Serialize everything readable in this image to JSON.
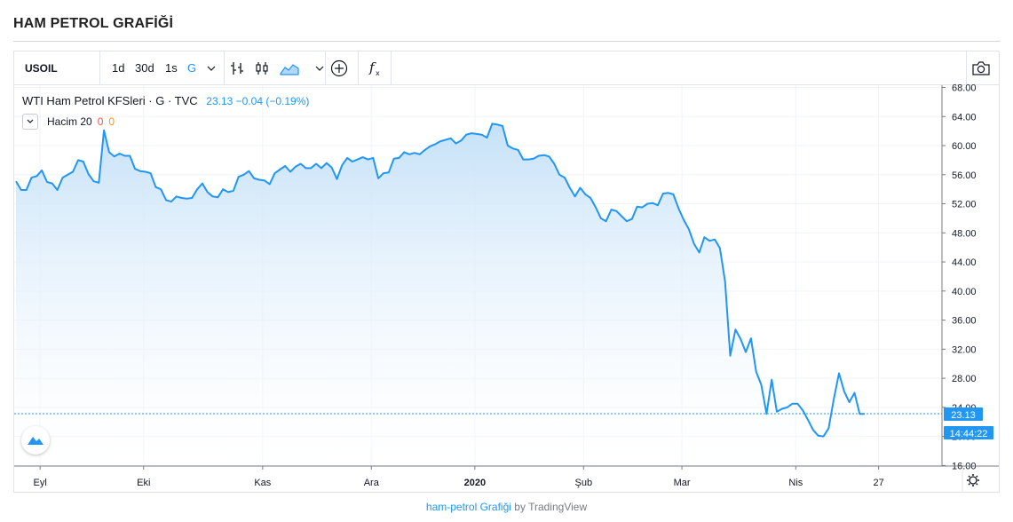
{
  "page": {
    "title": "HAM PETROL GRAFİĞİ"
  },
  "toolbar": {
    "symbol": "USOIL",
    "intervals": [
      "1d",
      "30d",
      "1s",
      "G"
    ],
    "active_interval": "G",
    "icons": [
      "chevron-down-icon",
      "bar-style-icon",
      "candle-style-icon",
      "area-style-icon",
      "compare-plus-icon",
      "indicators-fx-icon",
      "camera-icon"
    ]
  },
  "legend": {
    "main": "WTI Ham Petrol KFSleri · G · TVC",
    "value": "23.13 −0.04 (−0.19%)",
    "volume_label": "Hacim 20",
    "volume_v1": "0",
    "volume_v2": "0"
  },
  "price_labels": {
    "last": "23.13",
    "time": "14:44:22"
  },
  "footer": {
    "link": "ham-petrol Grafiği",
    "by": "by TradingView"
  },
  "colors": {
    "line": "#2196f3",
    "area_top": "#c5e1f8",
    "grid": "#f0f3fa",
    "text": "#131722",
    "last_price_bg": "#2196f3"
  },
  "chart_data": {
    "type": "area",
    "title": "WTI Ham Petrol KFSleri",
    "xlabel": "",
    "ylabel": "",
    "ylim": [
      16,
      68
    ],
    "y_ticks": [
      16,
      20,
      24,
      28,
      32,
      36,
      40,
      44,
      48,
      52,
      56,
      60,
      64,
      68
    ],
    "y_tick_labels": [
      "16.00",
      "20.00",
      "24.00",
      "28.00",
      "32.00",
      "36.00",
      "40.00",
      "44.00",
      "48.00",
      "52.00",
      "56.00",
      "60.00",
      "64.00",
      "68.00"
    ],
    "x_labels": [
      {
        "index": 5,
        "label": "Eyl"
      },
      {
        "index": 25,
        "label": "Eki"
      },
      {
        "index": 48,
        "label": "Kas"
      },
      {
        "index": 69,
        "label": "Ara"
      },
      {
        "index": 89,
        "label": "2020"
      },
      {
        "index": 110,
        "label": "Şub"
      },
      {
        "index": 129,
        "label": "Mar"
      },
      {
        "index": 151,
        "label": "Nis"
      },
      {
        "index": 167,
        "label": "27"
      }
    ],
    "last_value": 23.13,
    "series": [
      {
        "values": [
          55.1,
          53.9,
          53.9,
          55.6,
          55.8,
          56.6,
          55.0,
          54.8,
          53.9,
          55.6,
          56.0,
          56.4,
          58.0,
          57.8,
          56.1,
          55.1,
          54.9,
          62.1,
          59.1,
          58.5,
          58.9,
          58.6,
          58.6,
          56.8,
          56.5,
          56.4,
          56.2,
          54.3,
          54.0,
          52.5,
          52.3,
          53.0,
          52.8,
          52.7,
          52.8,
          54.0,
          54.8,
          53.6,
          53.0,
          52.9,
          54.0,
          53.6,
          53.8,
          55.7,
          56.0,
          56.5,
          55.5,
          55.3,
          55.2,
          54.7,
          56.2,
          56.7,
          57.2,
          56.4,
          57.1,
          57.5,
          56.9,
          56.9,
          57.5,
          56.9,
          57.6,
          57.0,
          55.4,
          57.3,
          58.3,
          57.8,
          58.1,
          58.4,
          58.1,
          58.3,
          55.5,
          56.2,
          56.3,
          58.2,
          58.3,
          59.1,
          58.8,
          59.0,
          58.8,
          59.4,
          59.9,
          60.2,
          60.6,
          60.8,
          61.0,
          60.3,
          60.7,
          61.5,
          61.7,
          61.6,
          61.5,
          61.1,
          63.0,
          62.9,
          62.7,
          60.0,
          59.6,
          59.4,
          58.1,
          58.1,
          58.2,
          58.6,
          58.7,
          58.5,
          57.5,
          56.0,
          55.6,
          54.2,
          53.0,
          54.2,
          53.3,
          52.8,
          51.5,
          50.0,
          49.6,
          51.2,
          51.0,
          50.3,
          49.6,
          49.9,
          51.6,
          51.5,
          52.0,
          52.1,
          51.8,
          53.4,
          53.5,
          53.3,
          51.4,
          49.8,
          48.5,
          46.5,
          45.3,
          47.4,
          46.9,
          47.1,
          45.9,
          41.3,
          31.1,
          34.7,
          33.4,
          31.6,
          33.5,
          28.9,
          27.1,
          23.1,
          27.8,
          23.4,
          23.8,
          24.0,
          24.5,
          24.5,
          23.6,
          22.3,
          20.9,
          20.1,
          20.0,
          21.1,
          25.1,
          28.7,
          26.2,
          24.7,
          26.0,
          23.1,
          23.1
        ]
      }
    ]
  }
}
